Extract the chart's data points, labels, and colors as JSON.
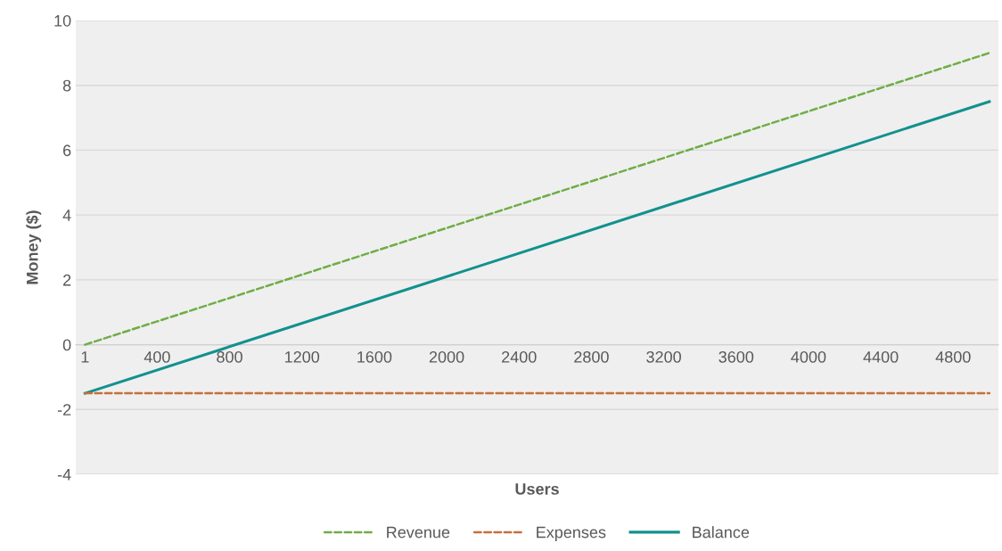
{
  "chart_data": {
    "type": "line",
    "xlabel": "Users",
    "ylabel": "Money ($)",
    "x": [
      1,
      5000
    ],
    "series": [
      {
        "name": "Revenue",
        "color": "#70ad47",
        "values": [
          0,
          9
        ],
        "line_style": "dashed"
      },
      {
        "name": "Expenses",
        "color": "#c5703a",
        "values": [
          -1.5,
          -1.5
        ],
        "line_style": "dashed"
      },
      {
        "name": "Balance",
        "color": "#12918e",
        "values": [
          -1.5,
          7.5
        ],
        "line_style": "solid"
      }
    ],
    "xlim": [
      -50,
      5050
    ],
    "xticks": [
      1,
      400,
      800,
      1200,
      1600,
      2000,
      2400,
      2800,
      3200,
      3600,
      4000,
      4400,
      4800
    ],
    "ylim": [
      -4,
      10
    ],
    "yticks": [
      -4,
      -2,
      0,
      2,
      4,
      6,
      8,
      10
    ],
    "grid": "y",
    "legend": "bottom",
    "marker": "none"
  }
}
